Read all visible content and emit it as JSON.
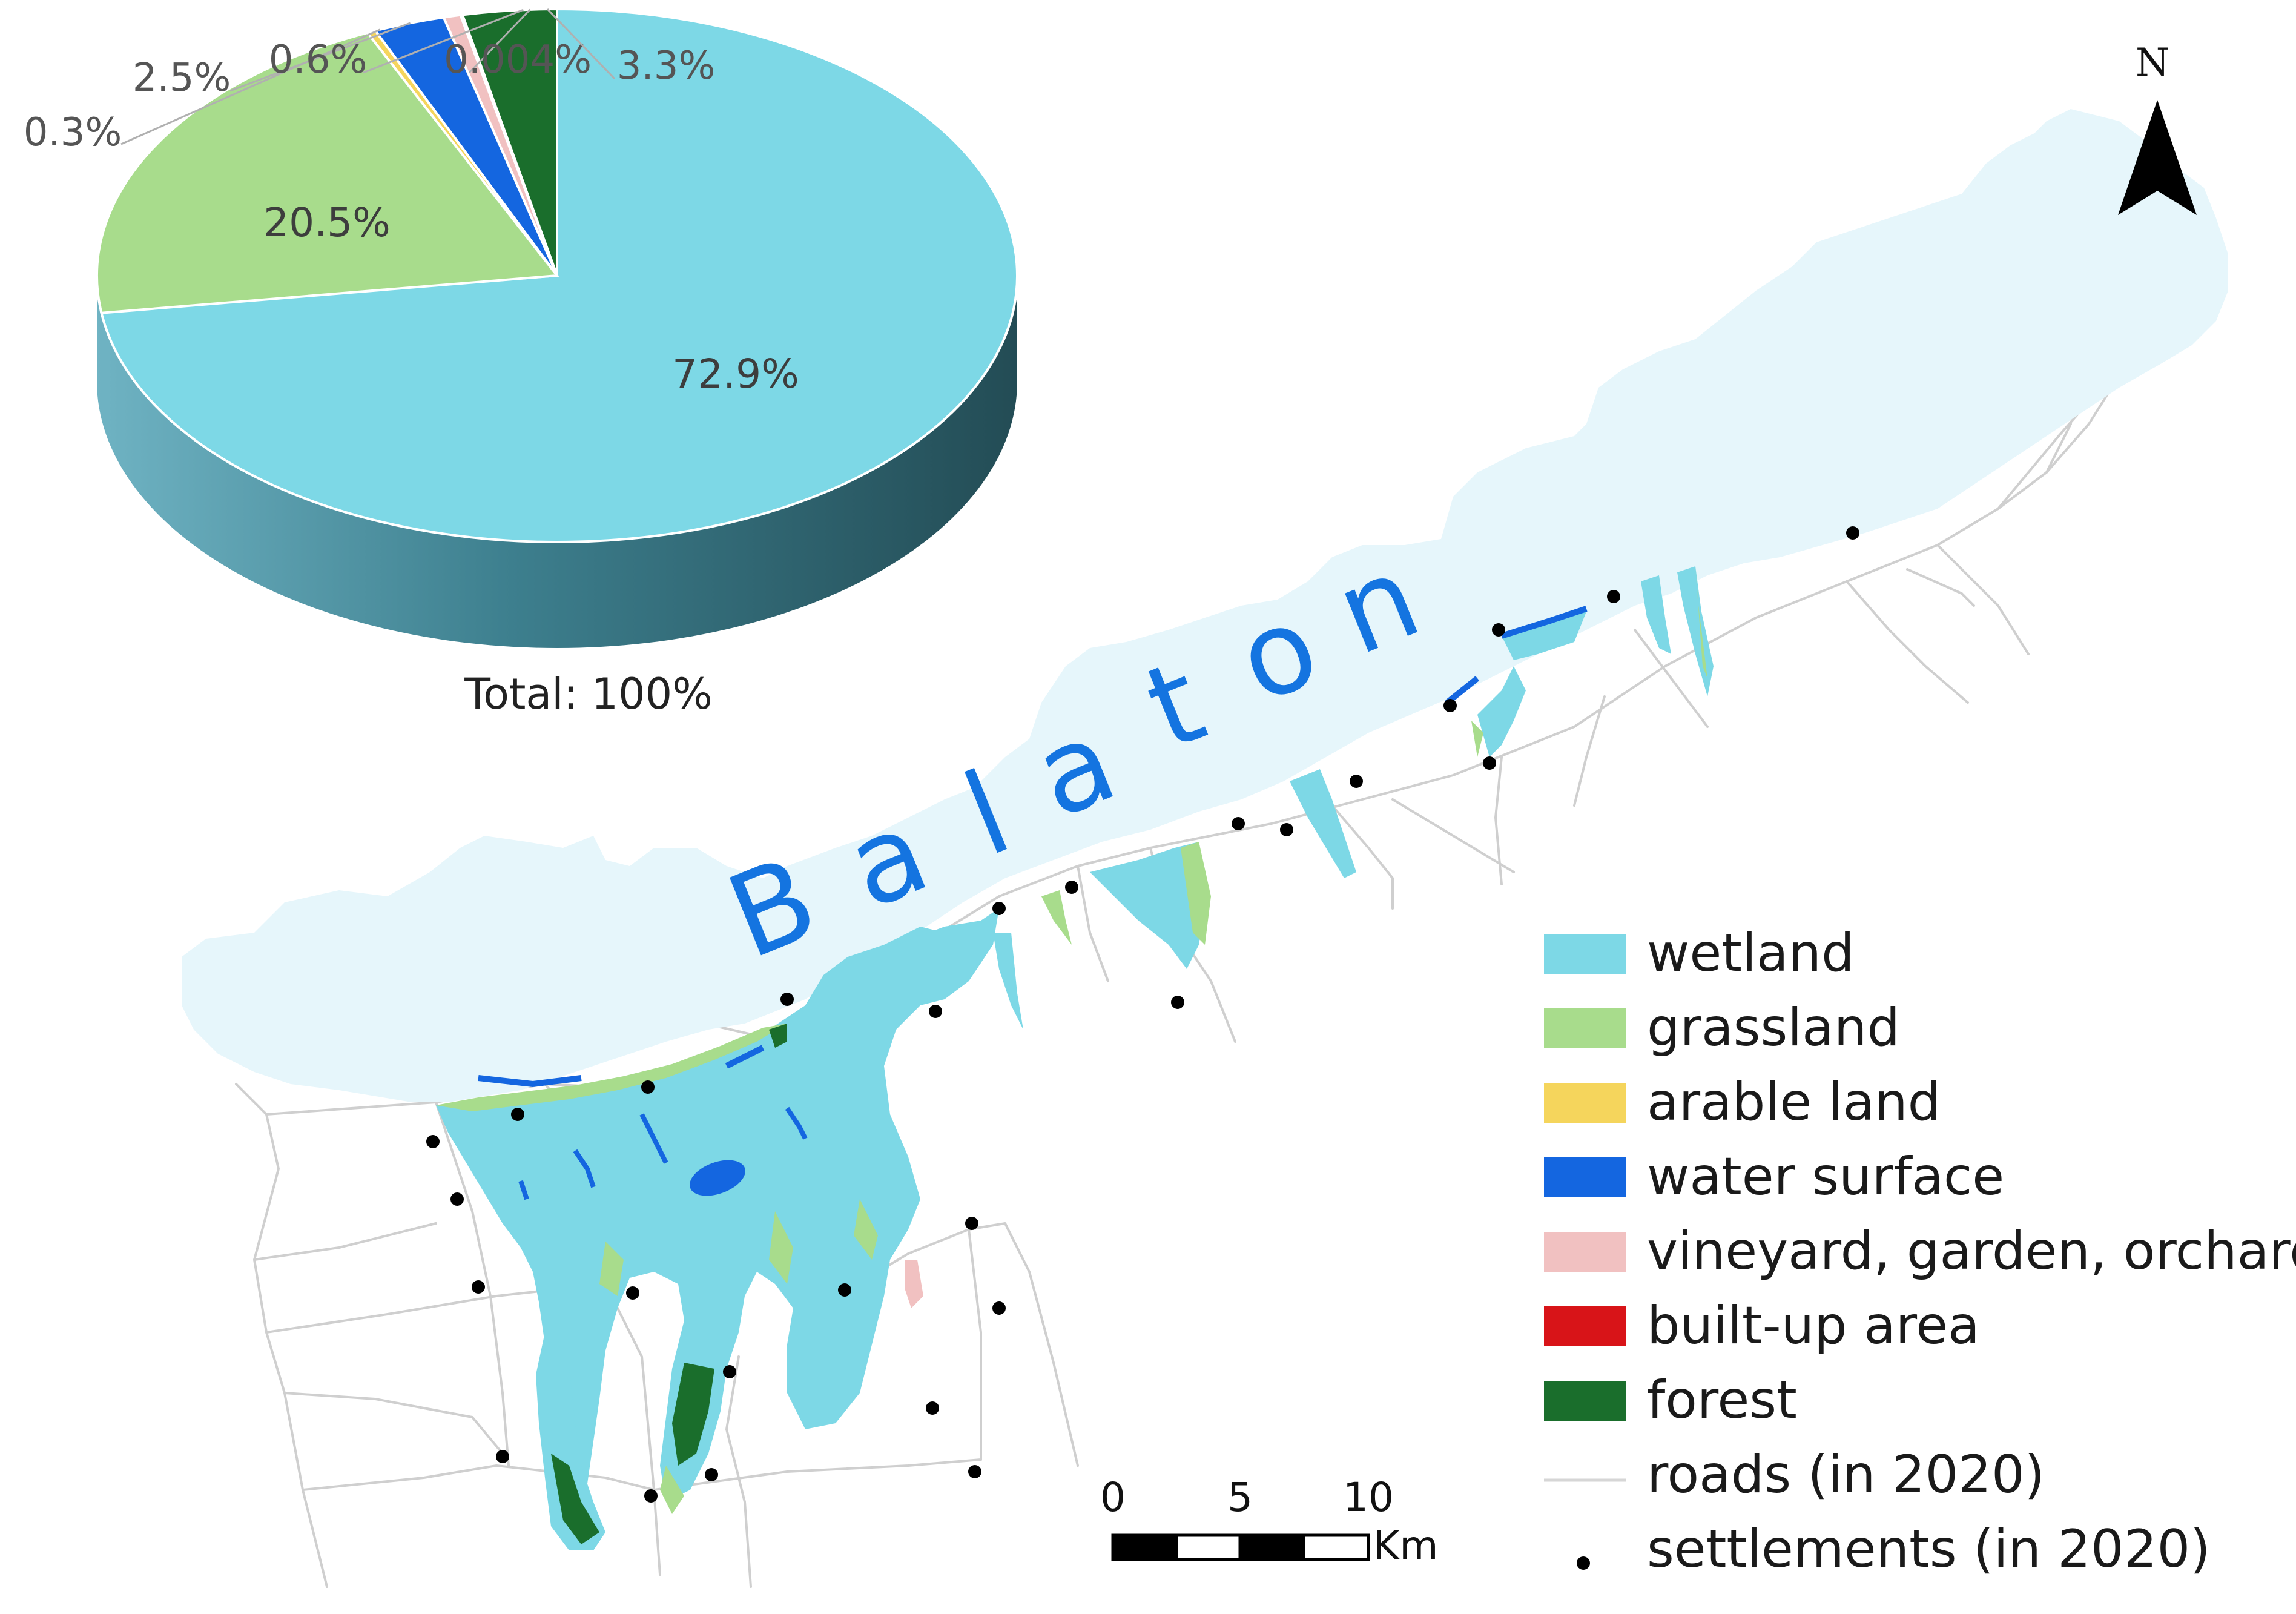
{
  "map": {
    "lake_name": "Balaton",
    "lake_letters": [
      "B",
      "a",
      "l",
      "a",
      "t",
      "o",
      "n"
    ],
    "north_label": "N",
    "colors": {
      "lake": "#e6f6fb",
      "wetland": "#7dd8e6",
      "grassland": "#a8dc8c",
      "arable": "#f5d55c",
      "water": "#1466e0",
      "vineyard": "#f1c1c1",
      "builtup": "#d81418",
      "forest": "#1a6e2c",
      "roads": "#cfcfcf",
      "settlements": "#000000"
    }
  },
  "scale_bar": {
    "labels": [
      "0",
      "5",
      "10"
    ],
    "unit": "Km"
  },
  "legend": {
    "items": [
      {
        "label": "wetland",
        "color": "#7dd8e6",
        "kind": "patch"
      },
      {
        "label": "grassland",
        "color": "#a8dc8c",
        "kind": "patch"
      },
      {
        "label": "arable land",
        "color": "#f5d55c",
        "kind": "patch"
      },
      {
        "label": "water surface",
        "color": "#1466e0",
        "kind": "patch"
      },
      {
        "label": "vineyard, garden, orchard",
        "color": "#f1c1c1",
        "kind": "patch"
      },
      {
        "label": "built-up area",
        "color": "#d81418",
        "kind": "patch"
      },
      {
        "label": "forest",
        "color": "#1a6e2c",
        "kind": "patch"
      },
      {
        "label": "roads (in 2020)",
        "color": "#d6d6d6",
        "kind": "line"
      },
      {
        "label": "settlements (in 2020)",
        "color": "#000000",
        "kind": "dot"
      }
    ]
  },
  "chart_data": {
    "type": "pie",
    "title": "",
    "total_label": "Total: 100%",
    "slices": [
      {
        "label": "72.9%",
        "value": 72.9,
        "category": "wetland",
        "color": "#7dd8e6"
      },
      {
        "label": "20.5%",
        "value": 20.5,
        "category": "grassland",
        "color": "#a8dc8c"
      },
      {
        "label": "0.3%",
        "value": 0.3,
        "category": "arable land",
        "color": "#f5d55c"
      },
      {
        "label": "2.5%",
        "value": 2.5,
        "category": "water surface",
        "color": "#1466e0"
      },
      {
        "label": "0.6%",
        "value": 0.6,
        "category": "vineyard, garden, orchard",
        "color": "#f1c1c1"
      },
      {
        "label": "0.004%",
        "value": 0.004,
        "category": "built-up area",
        "color": "#d81418"
      },
      {
        "label": "3.3%",
        "value": 3.3,
        "category": "forest",
        "color": "#1a6e2c"
      }
    ]
  }
}
